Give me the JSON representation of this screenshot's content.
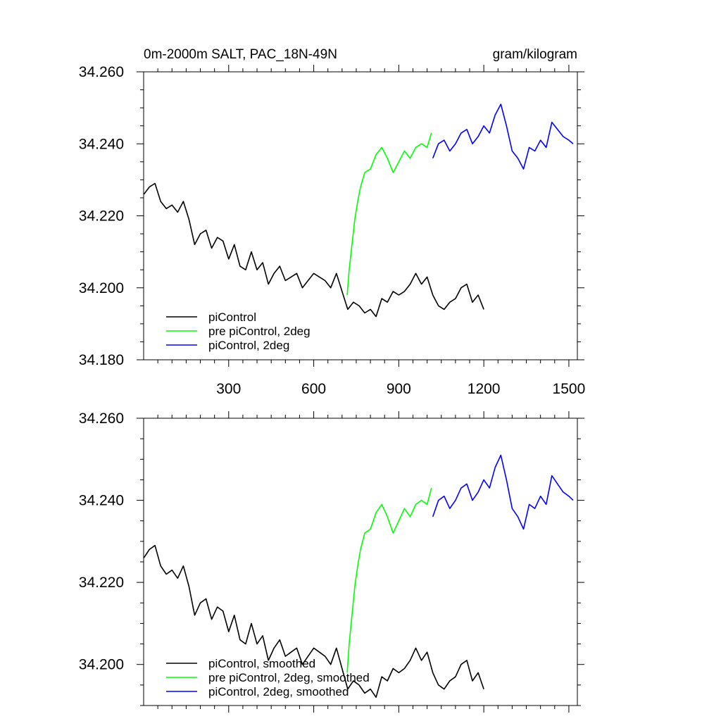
{
  "header": {
    "title": "0m-2000m SALT, PAC_18N-49N",
    "units": "gram/kilogram"
  },
  "chart_data": [
    {
      "type": "line",
      "panel": "top",
      "title": "0m-2000m SALT, PAC_18N-49N",
      "units": "gram/kilogram",
      "xlim": [
        0,
        1530
      ],
      "ylim": [
        34.18,
        34.26
      ],
      "xticks": [
        300,
        600,
        900,
        1200,
        1500
      ],
      "xtick_labels": [
        "300",
        "600",
        "900",
        "1200",
        "1500"
      ],
      "yticks": [
        34.18,
        34.2,
        34.22,
        34.24,
        34.26
      ],
      "ytick_labels": [
        "34.180",
        "34.200",
        "34.220",
        "34.240",
        "34.260"
      ],
      "grid": false,
      "legend_position": "bottom-left",
      "series": [
        {
          "name": "piControl",
          "color": "#000000",
          "points": [
            [
              1,
              34.226
            ],
            [
              20,
              34.228
            ],
            [
              40,
              34.229
            ],
            [
              60,
              34.224
            ],
            [
              80,
              34.222
            ],
            [
              100,
              34.223
            ],
            [
              120,
              34.221
            ],
            [
              140,
              34.224
            ],
            [
              160,
              34.219
            ],
            [
              180,
              34.212
            ],
            [
              200,
              34.215
            ],
            [
              220,
              34.216
            ],
            [
              240,
              34.211
            ],
            [
              260,
              34.214
            ],
            [
              280,
              34.213
            ],
            [
              300,
              34.208
            ],
            [
              320,
              34.212
            ],
            [
              340,
              34.206
            ],
            [
              360,
              34.205
            ],
            [
              380,
              34.21
            ],
            [
              400,
              34.205
            ],
            [
              420,
              34.207
            ],
            [
              440,
              34.201
            ],
            [
              460,
              34.204
            ],
            [
              480,
              34.206
            ],
            [
              500,
              34.202
            ],
            [
              520,
              34.203
            ],
            [
              540,
              34.204
            ],
            [
              560,
              34.2
            ],
            [
              580,
              34.202
            ],
            [
              600,
              34.204
            ],
            [
              620,
              34.203
            ],
            [
              640,
              34.202
            ],
            [
              660,
              34.2
            ],
            [
              680,
              34.204
            ],
            [
              700,
              34.199
            ],
            [
              720,
              34.194
            ],
            [
              740,
              34.196
            ],
            [
              760,
              34.195
            ],
            [
              780,
              34.193
            ],
            [
              800,
              34.194
            ],
            [
              820,
              34.192
            ],
            [
              840,
              34.197
            ],
            [
              860,
              34.196
            ],
            [
              880,
              34.199
            ],
            [
              900,
              34.198
            ],
            [
              920,
              34.199
            ],
            [
              940,
              34.201
            ],
            [
              960,
              34.204
            ],
            [
              980,
              34.201
            ],
            [
              1000,
              34.203
            ],
            [
              1020,
              34.198
            ],
            [
              1040,
              34.195
            ],
            [
              1060,
              34.194
            ],
            [
              1080,
              34.196
            ],
            [
              1100,
              34.197
            ],
            [
              1120,
              34.2
            ],
            [
              1140,
              34.201
            ],
            [
              1160,
              34.196
            ],
            [
              1180,
              34.198
            ],
            [
              1200,
              34.194
            ]
          ]
        },
        {
          "name": "pre piControl, 2deg",
          "color": "#00ff00",
          "points": [
            [
              718,
              34.198
            ],
            [
              725,
              34.205
            ],
            [
              735,
              34.212
            ],
            [
              745,
              34.219
            ],
            [
              755,
              34.224
            ],
            [
              765,
              34.228
            ],
            [
              780,
              34.232
            ],
            [
              800,
              34.233
            ],
            [
              820,
              34.237
            ],
            [
              840,
              34.239
            ],
            [
              860,
              34.236
            ],
            [
              880,
              34.232
            ],
            [
              900,
              34.235
            ],
            [
              920,
              34.238
            ],
            [
              940,
              34.236
            ],
            [
              960,
              34.239
            ],
            [
              980,
              34.24
            ],
            [
              1000,
              34.239
            ],
            [
              1015,
              34.243
            ]
          ]
        },
        {
          "name": "piControl, 2deg",
          "color": "#0000ff",
          "points": [
            [
              1020,
              34.236
            ],
            [
              1040,
              34.24
            ],
            [
              1060,
              34.241
            ],
            [
              1080,
              34.238
            ],
            [
              1100,
              34.24
            ],
            [
              1120,
              34.243
            ],
            [
              1140,
              34.244
            ],
            [
              1160,
              34.24
            ],
            [
              1180,
              34.242
            ],
            [
              1200,
              34.245
            ],
            [
              1220,
              34.243
            ],
            [
              1240,
              34.248
            ],
            [
              1260,
              34.251
            ],
            [
              1280,
              34.245
            ],
            [
              1300,
              34.238
            ],
            [
              1320,
              34.236
            ],
            [
              1340,
              34.233
            ],
            [
              1360,
              34.239
            ],
            [
              1380,
              34.238
            ],
            [
              1400,
              34.241
            ],
            [
              1420,
              34.239
            ],
            [
              1440,
              34.246
            ],
            [
              1460,
              34.244
            ],
            [
              1480,
              34.242
            ],
            [
              1500,
              34.241
            ],
            [
              1515,
              34.24
            ]
          ]
        }
      ]
    },
    {
      "type": "line",
      "panel": "bottom",
      "xlim": [
        0,
        1530
      ],
      "ylim": [
        34.19,
        34.26
      ],
      "xticks": [
        300,
        600,
        900,
        1200,
        1500
      ],
      "xtick_labels": [
        "",
        "",
        "",
        "",
        ""
      ],
      "yticks": [
        34.2,
        34.22,
        34.24,
        34.26
      ],
      "ytick_labels": [
        "34.200",
        "34.220",
        "34.240",
        "34.260"
      ],
      "grid": false,
      "legend_position": "bottom-left",
      "series": [
        {
          "name": "piControl, smoothed",
          "color": "#000000",
          "points": [
            [
              1,
              34.226
            ],
            [
              20,
              34.228
            ],
            [
              40,
              34.229
            ],
            [
              60,
              34.224
            ],
            [
              80,
              34.222
            ],
            [
              100,
              34.223
            ],
            [
              120,
              34.221
            ],
            [
              140,
              34.224
            ],
            [
              160,
              34.219
            ],
            [
              180,
              34.212
            ],
            [
              200,
              34.215
            ],
            [
              220,
              34.216
            ],
            [
              240,
              34.211
            ],
            [
              260,
              34.214
            ],
            [
              280,
              34.213
            ],
            [
              300,
              34.208
            ],
            [
              320,
              34.212
            ],
            [
              340,
              34.206
            ],
            [
              360,
              34.205
            ],
            [
              380,
              34.21
            ],
            [
              400,
              34.205
            ],
            [
              420,
              34.207
            ],
            [
              440,
              34.201
            ],
            [
              460,
              34.204
            ],
            [
              480,
              34.206
            ],
            [
              500,
              34.202
            ],
            [
              520,
              34.203
            ],
            [
              540,
              34.204
            ],
            [
              560,
              34.2
            ],
            [
              580,
              34.202
            ],
            [
              600,
              34.204
            ],
            [
              620,
              34.203
            ],
            [
              640,
              34.202
            ],
            [
              660,
              34.2
            ],
            [
              680,
              34.204
            ],
            [
              700,
              34.199
            ],
            [
              720,
              34.194
            ],
            [
              740,
              34.196
            ],
            [
              760,
              34.195
            ],
            [
              780,
              34.193
            ],
            [
              800,
              34.194
            ],
            [
              820,
              34.192
            ],
            [
              840,
              34.197
            ],
            [
              860,
              34.196
            ],
            [
              880,
              34.199
            ],
            [
              900,
              34.198
            ],
            [
              920,
              34.199
            ],
            [
              940,
              34.201
            ],
            [
              960,
              34.204
            ],
            [
              980,
              34.201
            ],
            [
              1000,
              34.203
            ],
            [
              1020,
              34.198
            ],
            [
              1040,
              34.195
            ],
            [
              1060,
              34.194
            ],
            [
              1080,
              34.196
            ],
            [
              1100,
              34.197
            ],
            [
              1120,
              34.2
            ],
            [
              1140,
              34.201
            ],
            [
              1160,
              34.196
            ],
            [
              1180,
              34.198
            ],
            [
              1200,
              34.194
            ]
          ]
        },
        {
          "name": "pre piControl, 2deg, smoothed",
          "color": "#00ff00",
          "points": [
            [
              718,
              34.198
            ],
            [
              725,
              34.205
            ],
            [
              735,
              34.212
            ],
            [
              745,
              34.219
            ],
            [
              755,
              34.224
            ],
            [
              765,
              34.228
            ],
            [
              780,
              34.232
            ],
            [
              800,
              34.233
            ],
            [
              820,
              34.237
            ],
            [
              840,
              34.239
            ],
            [
              860,
              34.236
            ],
            [
              880,
              34.232
            ],
            [
              900,
              34.235
            ],
            [
              920,
              34.238
            ],
            [
              940,
              34.236
            ],
            [
              960,
              34.239
            ],
            [
              980,
              34.24
            ],
            [
              1000,
              34.239
            ],
            [
              1015,
              34.243
            ]
          ]
        },
        {
          "name": "piControl, 2deg, smoothed",
          "color": "#0000ff",
          "points": [
            [
              1020,
              34.236
            ],
            [
              1040,
              34.24
            ],
            [
              1060,
              34.241
            ],
            [
              1080,
              34.238
            ],
            [
              1100,
              34.24
            ],
            [
              1120,
              34.243
            ],
            [
              1140,
              34.244
            ],
            [
              1160,
              34.24
            ],
            [
              1180,
              34.242
            ],
            [
              1200,
              34.245
            ],
            [
              1220,
              34.243
            ],
            [
              1240,
              34.248
            ],
            [
              1260,
              34.251
            ],
            [
              1280,
              34.245
            ],
            [
              1300,
              34.238
            ],
            [
              1320,
              34.236
            ],
            [
              1340,
              34.233
            ],
            [
              1360,
              34.239
            ],
            [
              1380,
              34.238
            ],
            [
              1400,
              34.241
            ],
            [
              1420,
              34.239
            ],
            [
              1440,
              34.246
            ],
            [
              1460,
              34.244
            ],
            [
              1480,
              34.242
            ],
            [
              1500,
              34.241
            ],
            [
              1515,
              34.24
            ]
          ]
        }
      ]
    }
  ]
}
